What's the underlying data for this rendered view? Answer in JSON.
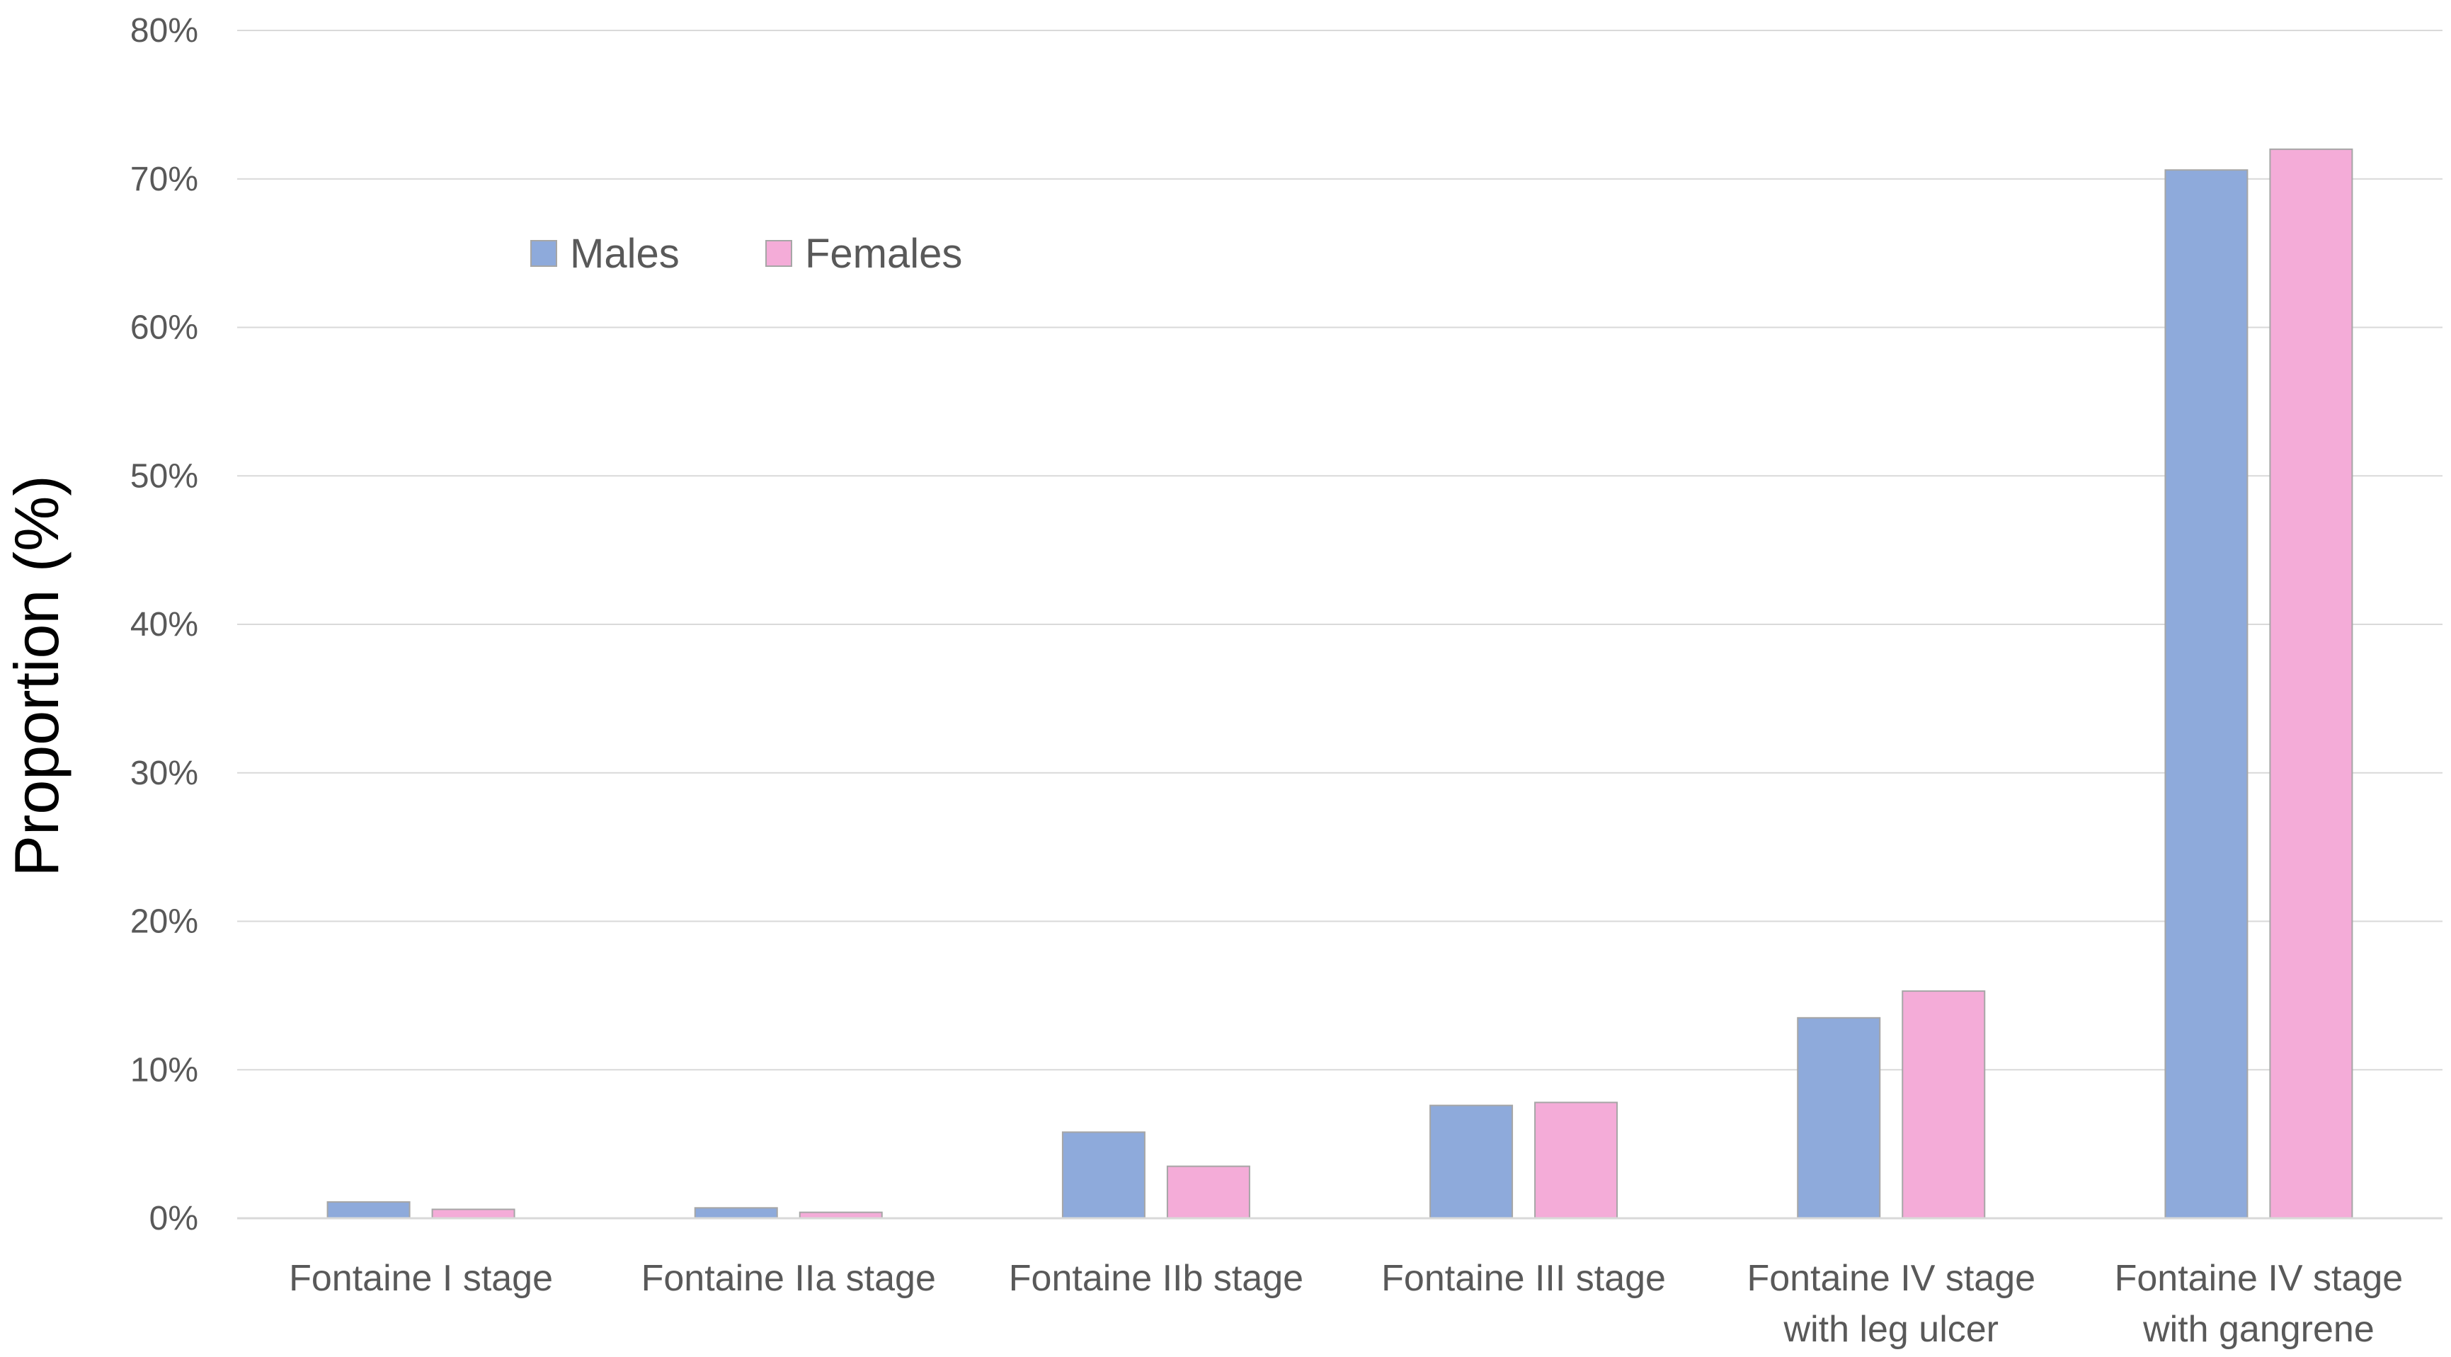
{
  "chart_data": {
    "type": "bar",
    "title": "",
    "xlabel": "",
    "ylabel": "Proportion (%)",
    "ylim": [
      0,
      80
    ],
    "yticks": [
      0,
      10,
      20,
      30,
      40,
      50,
      60,
      70,
      80
    ],
    "ytick_labels": [
      "0%",
      "10%",
      "20%",
      "30%",
      "40%",
      "50%",
      "60%",
      "70%",
      "80%"
    ],
    "grid": true,
    "legend_position": "top-left",
    "categories": [
      [
        "Fontaine I stage"
      ],
      [
        "Fontaine IIa stage"
      ],
      [
        "Fontaine IIb stage"
      ],
      [
        "Fontaine III stage"
      ],
      [
        "Fontaine IV stage",
        "with leg ulcer"
      ],
      [
        "Fontaine IV stage",
        "with gangrene"
      ]
    ],
    "series": [
      {
        "name": "Males",
        "color": "#8eaadb",
        "values": [
          1.1,
          0.7,
          5.8,
          7.6,
          13.5,
          70.6
        ]
      },
      {
        "name": "Females",
        "color": "#f4acd8",
        "values": [
          0.6,
          0.4,
          3.5,
          7.8,
          15.3,
          72.0
        ]
      }
    ]
  }
}
